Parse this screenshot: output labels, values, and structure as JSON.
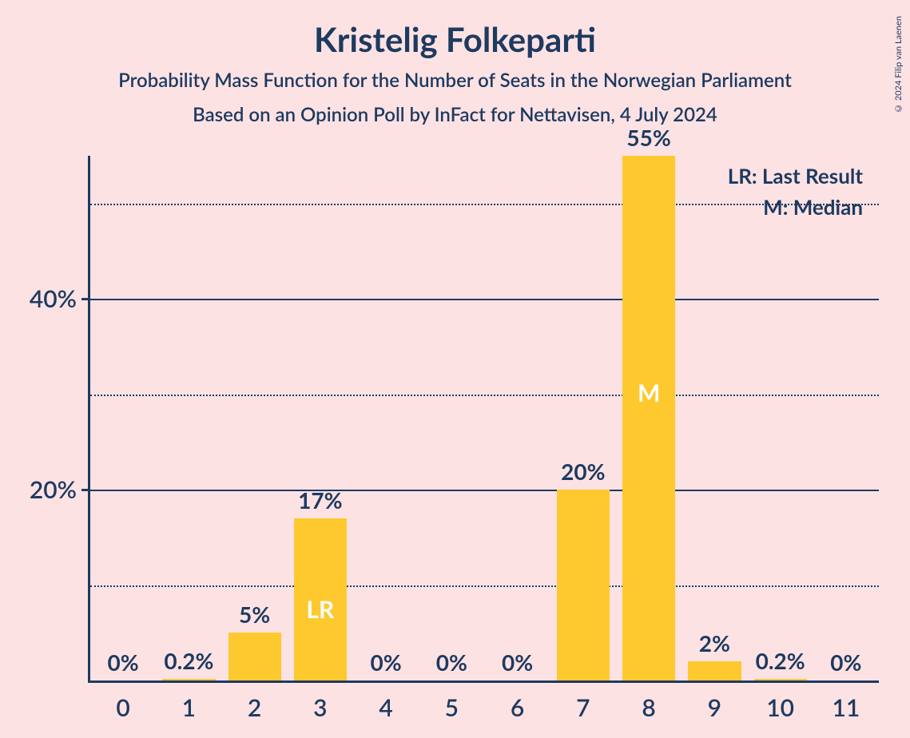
{
  "title": "Kristelig Folkeparti",
  "subtitle1": "Probability Mass Function for the Number of Seats in the Norwegian Parliament",
  "subtitle2": "Based on an Opinion Poll by InFact for Nettavisen, 4 July 2024",
  "copyright": "© 2024 Filip van Laenen",
  "legend": {
    "lr": "LR: Last Result",
    "m": "M: Median"
  },
  "chart": {
    "type": "bar",
    "background_color": "#fde2e4",
    "bar_color": "#fec92e",
    "text_color": "#1e3a5f",
    "inner_label_color": "#ffffff",
    "y_max": 55,
    "y_ticks_major": [
      20,
      40
    ],
    "y_ticks_minor": [
      10,
      30,
      50
    ],
    "categories": [
      "0",
      "1",
      "2",
      "3",
      "4",
      "5",
      "6",
      "7",
      "8",
      "9",
      "10",
      "11"
    ],
    "values": [
      0,
      0.2,
      5,
      17,
      0,
      0,
      0,
      20,
      55,
      2,
      0.2,
      0
    ],
    "labels": [
      "0%",
      "0.2%",
      "5%",
      "17%",
      "0%",
      "0%",
      "0%",
      "20%",
      "55%",
      "2%",
      "0.2%",
      "0%"
    ],
    "markers": {
      "3": "LR",
      "8": "M"
    },
    "y_tick_labels": {
      "20": "20%",
      "40": "40%"
    }
  }
}
